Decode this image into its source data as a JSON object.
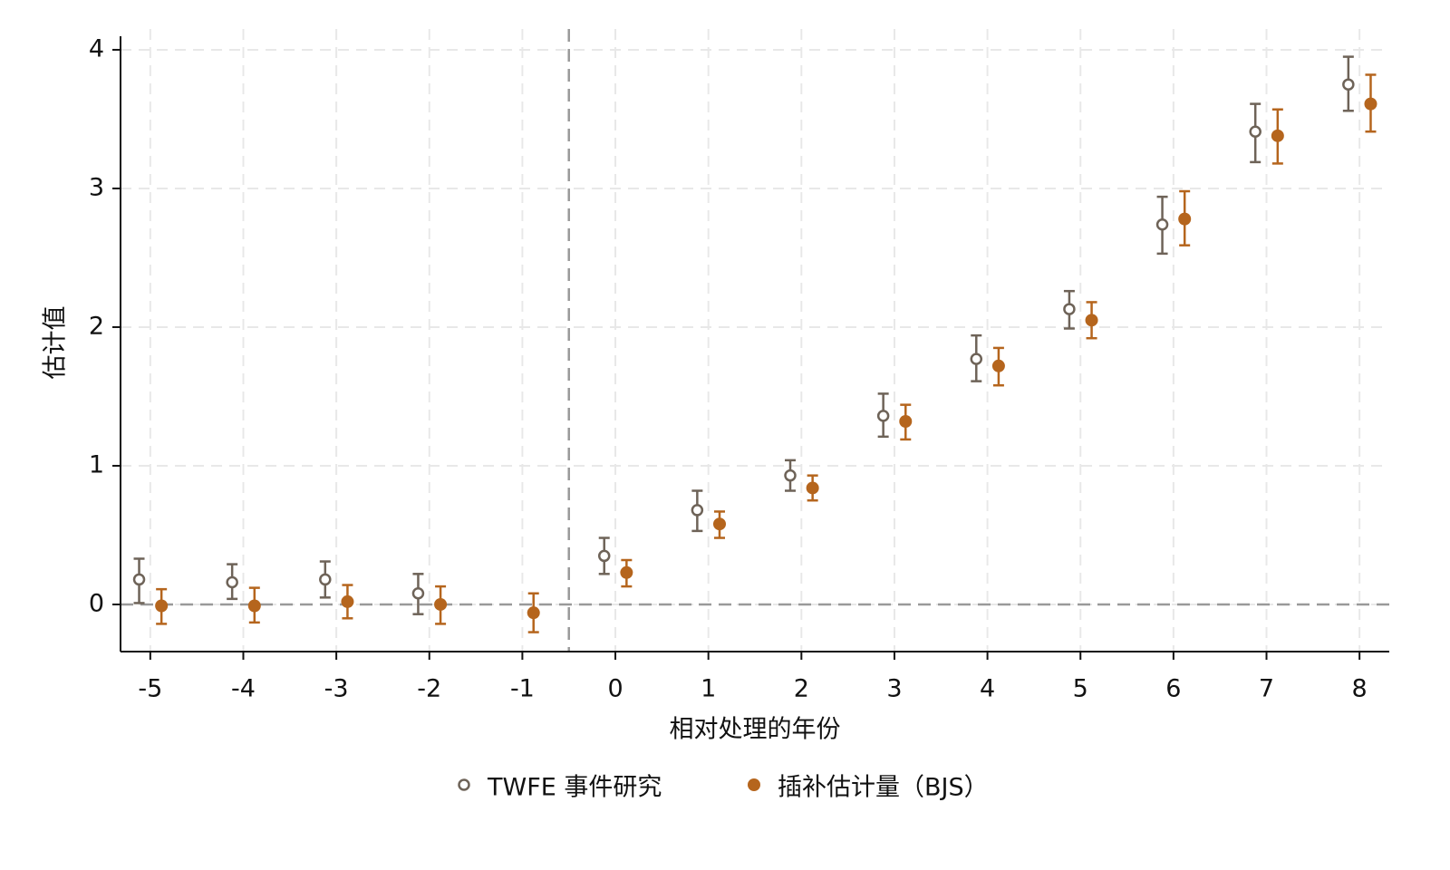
{
  "chart_data": {
    "type": "errorbar",
    "x_label": "相对处理的年份",
    "y_label": "估计值",
    "x": [
      -5,
      -4,
      -3,
      -2,
      -1,
      0,
      1,
      2,
      3,
      4,
      5,
      6,
      7,
      8
    ],
    "series": [
      {
        "name": "TWFE 事件研究",
        "color": "#6e6358",
        "marker": "hollow",
        "values": [
          0.18,
          0.16,
          0.18,
          0.08,
          null,
          0.35,
          0.68,
          0.93,
          1.36,
          1.77,
          2.13,
          2.74,
          3.41,
          3.75
        ],
        "lower": [
          0.01,
          0.04,
          0.05,
          -0.07,
          null,
          0.22,
          0.53,
          0.82,
          1.21,
          1.61,
          1.99,
          2.53,
          3.19,
          3.56
        ],
        "upper": [
          0.33,
          0.29,
          0.31,
          0.22,
          null,
          0.48,
          0.82,
          1.04,
          1.52,
          1.94,
          2.26,
          2.94,
          3.61,
          3.95
        ]
      },
      {
        "name": "插补估计量（BJS）",
        "color": "#b5651d",
        "marker": "filled",
        "values": [
          -0.01,
          -0.01,
          0.02,
          0.0,
          -0.06,
          0.23,
          0.58,
          0.84,
          1.32,
          1.72,
          2.05,
          2.78,
          3.38,
          3.61
        ],
        "lower": [
          -0.14,
          -0.13,
          -0.1,
          -0.14,
          -0.2,
          0.13,
          0.48,
          0.75,
          1.19,
          1.58,
          1.92,
          2.59,
          3.18,
          3.41
        ],
        "upper": [
          0.11,
          0.12,
          0.14,
          0.13,
          0.08,
          0.32,
          0.67,
          0.93,
          1.44,
          1.85,
          2.18,
          2.98,
          3.57,
          3.82
        ]
      }
    ],
    "xlim": [
      -5.32,
      8.32
    ],
    "ylim": [
      -0.34,
      4.15
    ],
    "xticks": [
      -5,
      -4,
      -3,
      -2,
      -1,
      0,
      1,
      2,
      3,
      4,
      5,
      6,
      7,
      8
    ],
    "yticks": [
      0,
      1,
      2,
      3,
      4
    ],
    "grid": true,
    "hline": 0,
    "vline": -0.5,
    "legend": "bottom"
  }
}
